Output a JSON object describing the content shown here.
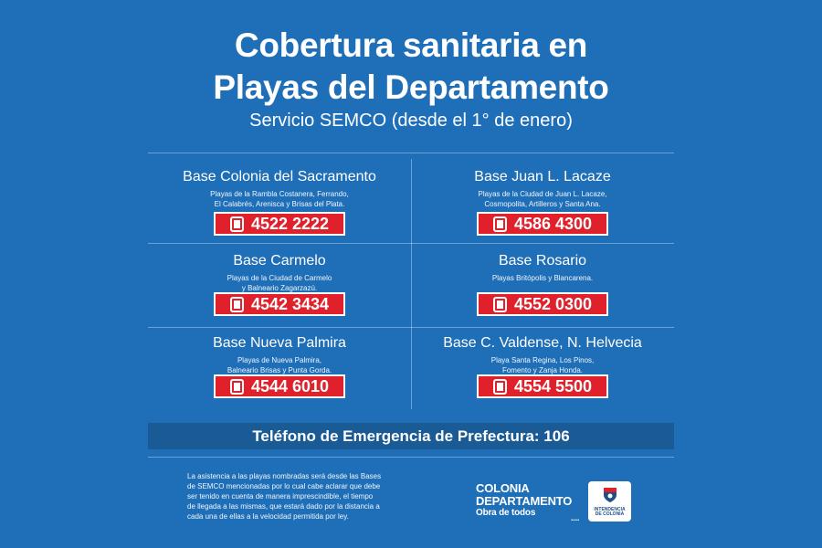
{
  "header": {
    "title_line1": "Cobertura sanitaria en",
    "title_line2": "Playas del Departamento",
    "subtitle": "Servicio SEMCO (desde el 1° de enero)"
  },
  "bases": [
    {
      "name": "Base Colonia del Sacramento",
      "desc1": "Playas de la Rambla Costanera, Ferrando,",
      "desc2": "El Calabrés, Arenisca y Brisas del Plata.",
      "phone": "4522 2222"
    },
    {
      "name": "Base Juan L. Lacaze",
      "desc1": "Playas de la Ciudad de Juan L. Lacaze,",
      "desc2": "Cosmopolita, Artilleros y Santa Ana.",
      "phone": "4586 4300"
    },
    {
      "name": "Base Carmelo",
      "desc1": "Playas de la Ciudad de Carmelo",
      "desc2": "y Balneario Zagarzazú.",
      "phone": "4542 3434"
    },
    {
      "name": "Base Rosario",
      "desc1": "Playas Britópolis y Blancarena.",
      "desc2": "",
      "phone": "4552 0300"
    },
    {
      "name": "Base Nueva Palmira",
      "desc1": "Playas de Nueva Palmira,",
      "desc2": "Balneario Brisas y Punta Gorda.",
      "phone": "4544 6010"
    },
    {
      "name": "Base C. Valdense, N. Helvecia",
      "desc1": "Playa Santa Regina, Los Pinos,",
      "desc2": "Fomento y Zanja Honda.",
      "phone": "4554 5500"
    }
  ],
  "emergency": "Teléfono de Emergencia de Prefectura: 106",
  "footnote": {
    "line1": "La asistencia a las playas nombradas será desde las Bases",
    "line2": "de SEMCO mencionadas por lo cual cabe aclarar que debe",
    "line3": "ser tenido en cuenta de manera imprescindible, el tiempo",
    "line4": "de llegada a las mismas, que estará dado por la distancia a",
    "line5": "cada una de ellas a la velocidad permitida por ley."
  },
  "brand": {
    "line1": "COLONIA",
    "line2": "DEPARTAMENTO",
    "tagline": "Obra de todos",
    "dots": "....",
    "seal_line1": "INTENDENCIA",
    "seal_line2": "DE COLONIA"
  },
  "colors": {
    "background": "#1f6fb8",
    "phone_badge": "#e0202a",
    "emergency_bar": "#1a5a95"
  },
  "icons": {
    "phone": "phone-icon",
    "seal": "coat-of-arms-icon"
  }
}
